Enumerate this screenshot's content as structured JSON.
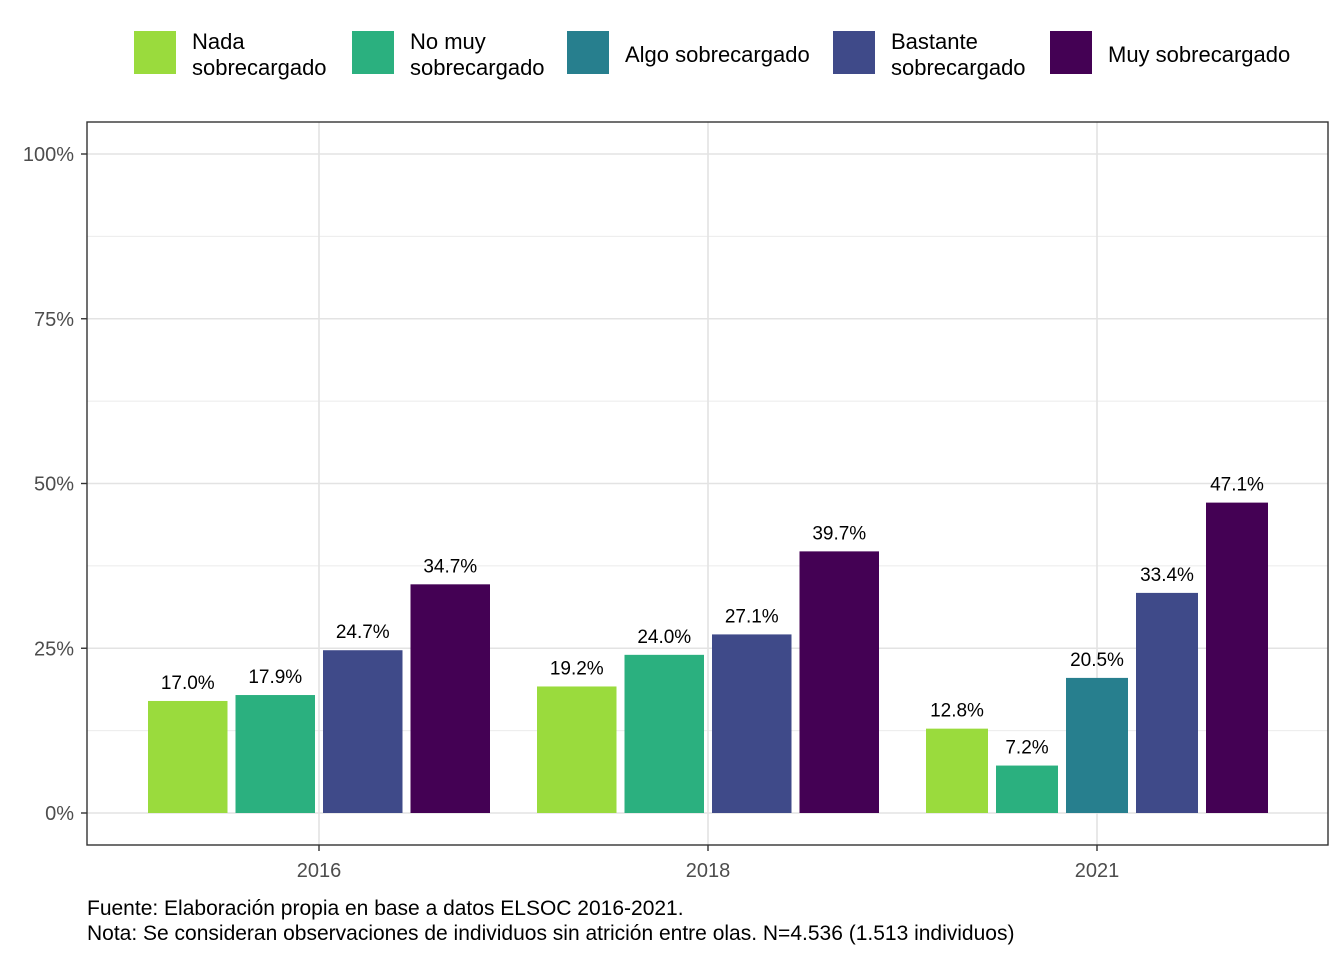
{
  "chart_data": {
    "type": "bar",
    "categories": [
      "2016",
      "2018",
      "2021"
    ],
    "series": [
      {
        "name": "Nada sobrecargado",
        "legend_lines": [
          "Nada",
          "sobrecargado"
        ],
        "color": "#9ADB3D",
        "values": [
          17.0,
          19.2,
          12.8
        ],
        "labels": [
          "17.0%",
          "19.2%",
          "12.8%"
        ]
      },
      {
        "name": "No muy sobrecargado",
        "legend_lines": [
          "No muy",
          "sobrecargado"
        ],
        "color": "#2BB07F",
        "values": [
          17.9,
          24.0,
          7.2
        ],
        "labels": [
          "17.9%",
          "24.0%",
          "7.2%"
        ]
      },
      {
        "name": "Algo sobrecargado",
        "legend_lines": [
          "Algo sobrecargado"
        ],
        "color": "#277F8E",
        "values": [
          null,
          null,
          20.5
        ],
        "labels": [
          null,
          null,
          "20.5%"
        ]
      },
      {
        "name": "Bastante sobrecargado",
        "legend_lines": [
          "Bastante",
          "sobrecargado"
        ],
        "color": "#3F4A89",
        "values": [
          24.7,
          27.1,
          33.4
        ],
        "labels": [
          "24.7%",
          "27.1%",
          "33.4%"
        ]
      },
      {
        "name": "Muy sobrecargado",
        "legend_lines": [
          "Muy sobrecargado"
        ],
        "color": "#440154",
        "values": [
          34.7,
          39.7,
          47.1
        ],
        "labels": [
          "34.7%",
          "39.7%",
          "47.1%"
        ]
      }
    ],
    "y_ticks": [
      0,
      25,
      50,
      75,
      100
    ],
    "y_tick_labels": [
      "0%",
      "25%",
      "50%",
      "75%",
      "100%"
    ],
    "ylim": [
      0,
      100
    ],
    "grid": true,
    "legend_position": "top"
  },
  "caption": {
    "source": "Fuente: Elaboración propia en base a datos ELSOC 2016-2021.",
    "note": "Nota: Se consideran observaciones de individuos sin atrición entre olas. N=4.536 (1.513 individuos)"
  }
}
